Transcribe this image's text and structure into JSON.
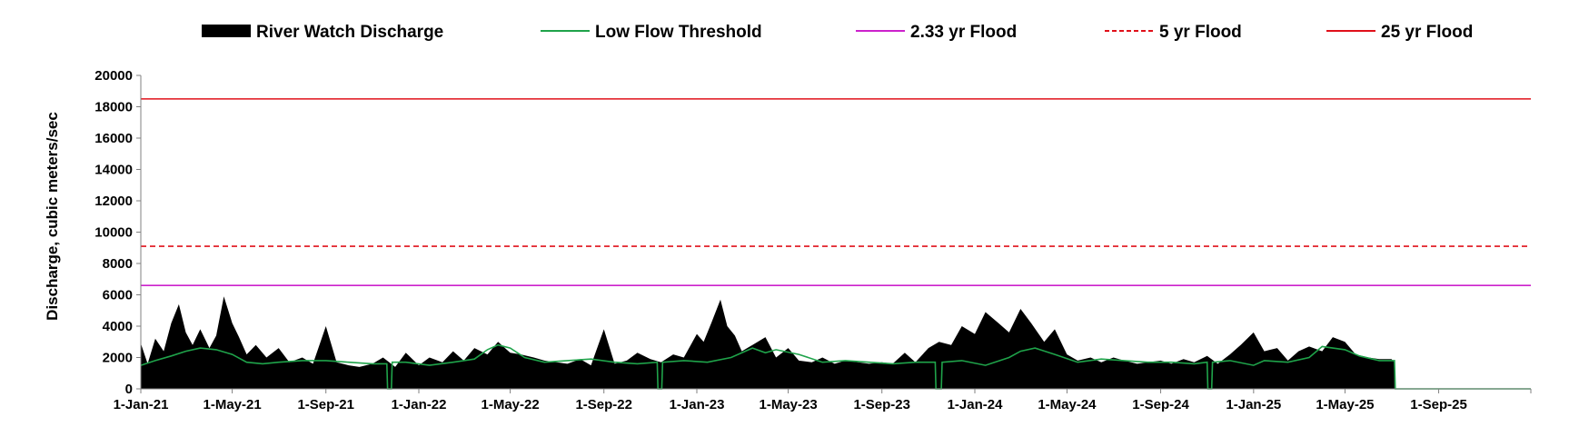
{
  "chart_data": {
    "type": "area",
    "ylabel": "Discharge, cubic meters/sec",
    "xlabel": "",
    "ylim": [
      0,
      20000
    ],
    "y_ticks": [
      0,
      2000,
      4000,
      6000,
      8000,
      10000,
      12000,
      14000,
      16000,
      18000,
      20000
    ],
    "x_range": [
      "2021-01-01",
      "2025-12-31"
    ],
    "x_tick_labels": [
      "1-Jan-21",
      "1-May-21",
      "1-Sep-21",
      "1-Jan-22",
      "1-May-22",
      "1-Sep-22",
      "1-Jan-23",
      "1-May-23",
      "1-Sep-23",
      "1-Jan-24",
      "1-May-24",
      "1-Sep-24",
      "1-Jan-25",
      "1-May-25",
      "1-Sep-25"
    ],
    "x_tick_dates": [
      "2021-01-01",
      "2021-05-01",
      "2021-09-01",
      "2022-01-01",
      "2022-05-01",
      "2022-09-01",
      "2023-01-01",
      "2023-05-01",
      "2023-09-01",
      "2024-01-01",
      "2024-05-01",
      "2024-09-01",
      "2025-01-01",
      "2025-05-01",
      "2025-09-01"
    ],
    "grid": false,
    "legend_position": "top",
    "series": [
      {
        "name": "River Watch Discharge",
        "kind": "area",
        "color": "#000000",
        "x": [
          "2021-01-01",
          "2021-01-10",
          "2021-01-20",
          "2021-01-31",
          "2021-02-10",
          "2021-02-20",
          "2021-03-01",
          "2021-03-10",
          "2021-03-20",
          "2021-04-01",
          "2021-04-10",
          "2021-04-20",
          "2021-05-01",
          "2021-05-10",
          "2021-05-20",
          "2021-06-01",
          "2021-06-15",
          "2021-07-01",
          "2021-07-15",
          "2021-08-01",
          "2021-08-15",
          "2021-09-01",
          "2021-09-15",
          "2021-10-01",
          "2021-10-15",
          "2021-11-01",
          "2021-11-15",
          "2021-12-01",
          "2021-12-15",
          "2022-01-01",
          "2022-01-15",
          "2022-02-01",
          "2022-02-15",
          "2022-03-01",
          "2022-03-15",
          "2022-04-01",
          "2022-04-15",
          "2022-05-01",
          "2022-05-15",
          "2022-06-01",
          "2022-06-15",
          "2022-07-01",
          "2022-07-15",
          "2022-08-01",
          "2022-08-15",
          "2022-09-01",
          "2022-09-15",
          "2022-10-01",
          "2022-10-15",
          "2022-11-01",
          "2022-11-15",
          "2022-12-01",
          "2022-12-15",
          "2023-01-01",
          "2023-01-10",
          "2023-01-20",
          "2023-02-01",
          "2023-02-10",
          "2023-02-20",
          "2023-03-01",
          "2023-03-15",
          "2023-04-01",
          "2023-04-15",
          "2023-05-01",
          "2023-05-15",
          "2023-06-01",
          "2023-06-15",
          "2023-07-01",
          "2023-07-15",
          "2023-08-01",
          "2023-08-15",
          "2023-09-01",
          "2023-09-15",
          "2023-10-01",
          "2023-10-15",
          "2023-11-01",
          "2023-11-15",
          "2023-12-01",
          "2023-12-15",
          "2024-01-01",
          "2024-01-15",
          "2024-02-01",
          "2024-02-15",
          "2024-03-01",
          "2024-03-15",
          "2024-04-01",
          "2024-04-15",
          "2024-05-01",
          "2024-05-15",
          "2024-06-01",
          "2024-06-15",
          "2024-07-01",
          "2024-07-15",
          "2024-08-01",
          "2024-08-15",
          "2024-09-01",
          "2024-09-15",
          "2024-10-01",
          "2024-10-15",
          "2024-11-01",
          "2024-11-15",
          "2024-12-01",
          "2024-12-15",
          "2025-01-01",
          "2025-01-15",
          "2025-02-01",
          "2025-02-15",
          "2025-03-01",
          "2025-03-15",
          "2025-04-01",
          "2025-04-15",
          "2025-05-01",
          "2025-05-15",
          "2025-06-01",
          "2025-06-15",
          "2025-07-01",
          "2025-07-05"
        ],
        "y": [
          2900,
          1600,
          3200,
          2400,
          4200,
          5400,
          3600,
          2800,
          3800,
          2600,
          3400,
          5900,
          4200,
          3300,
          2200,
          2800,
          2000,
          2600,
          1700,
          2000,
          1600,
          4000,
          1700,
          1500,
          1400,
          1600,
          2000,
          1400,
          2300,
          1500,
          2000,
          1700,
          2400,
          1800,
          2600,
          2200,
          3000,
          2300,
          2200,
          2000,
          1800,
          1700,
          1600,
          1900,
          1500,
          3800,
          1600,
          1800,
          2300,
          1900,
          1700,
          2200,
          2000,
          3500,
          3000,
          4200,
          5700,
          4000,
          3400,
          2400,
          2800,
          3300,
          2000,
          2600,
          1800,
          1700,
          2000,
          1600,
          1800,
          1700,
          1600,
          1700,
          1600,
          2300,
          1700,
          2600,
          3000,
          2800,
          4000,
          3500,
          4900,
          4200,
          3600,
          5100,
          4200,
          3000,
          3800,
          2200,
          1800,
          2000,
          1700,
          2000,
          1800,
          1600,
          1700,
          1800,
          1600,
          1900,
          1700,
          2100,
          1600,
          2200,
          2800,
          3600,
          2400,
          2600,
          1800,
          2400,
          2700,
          2400,
          3300,
          3000,
          2200,
          2000,
          1900,
          1900,
          1700
        ]
      },
      {
        "name": "Low Flow Threshold",
        "kind": "line",
        "color": "#1fa34a",
        "x": [
          "2021-01-01",
          "2021-01-20",
          "2021-02-10",
          "2021-03-01",
          "2021-03-20",
          "2021-04-10",
          "2021-05-01",
          "2021-05-20",
          "2021-06-10",
          "2021-07-01",
          "2021-08-01",
          "2021-09-01",
          "2021-10-01",
          "2021-11-01",
          "2021-11-20",
          "2021-11-21",
          "2021-11-26",
          "2021-11-27",
          "2021-12-15",
          "2022-01-15",
          "2022-02-15",
          "2022-03-15",
          "2022-04-01",
          "2022-04-15",
          "2022-05-01",
          "2022-05-20",
          "2022-06-15",
          "2022-07-15",
          "2022-08-15",
          "2022-09-15",
          "2022-10-15",
          "2022-11-10",
          "2022-11-11",
          "2022-11-16",
          "2022-11-17",
          "2022-12-15",
          "2023-01-15",
          "2023-02-15",
          "2023-03-15",
          "2023-04-01",
          "2023-04-15",
          "2023-05-15",
          "2023-06-15",
          "2023-07-15",
          "2023-08-15",
          "2023-09-15",
          "2023-10-15",
          "2023-11-10",
          "2023-11-11",
          "2023-11-18",
          "2023-11-19",
          "2023-12-15",
          "2024-01-15",
          "2024-02-15",
          "2024-03-01",
          "2024-03-20",
          "2024-04-15",
          "2024-05-15",
          "2024-06-15",
          "2024-07-15",
          "2024-08-15",
          "2024-09-15",
          "2024-10-15",
          "2024-11-01",
          "2024-11-02",
          "2024-11-07",
          "2024-11-08",
          "2024-12-01",
          "2025-01-01",
          "2025-01-15",
          "2025-02-15",
          "2025-03-15",
          "2025-04-01",
          "2025-04-15",
          "2025-05-01",
          "2025-05-20",
          "2025-06-15",
          "2025-07-05",
          "2025-07-06",
          "2025-12-31"
        ],
        "y": [
          1500,
          1800,
          2100,
          2400,
          2600,
          2500,
          2200,
          1700,
          1600,
          1700,
          1800,
          1800,
          1700,
          1600,
          1600,
          0,
          0,
          1700,
          1700,
          1500,
          1700,
          1900,
          2500,
          2800,
          2600,
          2000,
          1700,
          1800,
          1900,
          1700,
          1600,
          1700,
          0,
          0,
          1700,
          1800,
          1700,
          2000,
          2600,
          2300,
          2500,
          2200,
          1700,
          1800,
          1700,
          1600,
          1700,
          1700,
          0,
          0,
          1700,
          1800,
          1500,
          2000,
          2400,
          2600,
          2200,
          1700,
          1900,
          1800,
          1700,
          1700,
          1600,
          1700,
          0,
          0,
          1700,
          1800,
          1500,
          1800,
          1700,
          2000,
          2700,
          2600,
          2500,
          2100,
          1800,
          1800,
          0,
          0
        ]
      },
      {
        "name": "2.33 yr Flood",
        "kind": "hline",
        "color": "#cc22cc",
        "value": 6600
      },
      {
        "name": "5 yr Flood",
        "kind": "hline",
        "style": "dashed",
        "color": "#e0101a",
        "value": 9100
      },
      {
        "name": "25 yr Flood",
        "kind": "hline",
        "color": "#e0101a",
        "value": 18500
      }
    ]
  }
}
